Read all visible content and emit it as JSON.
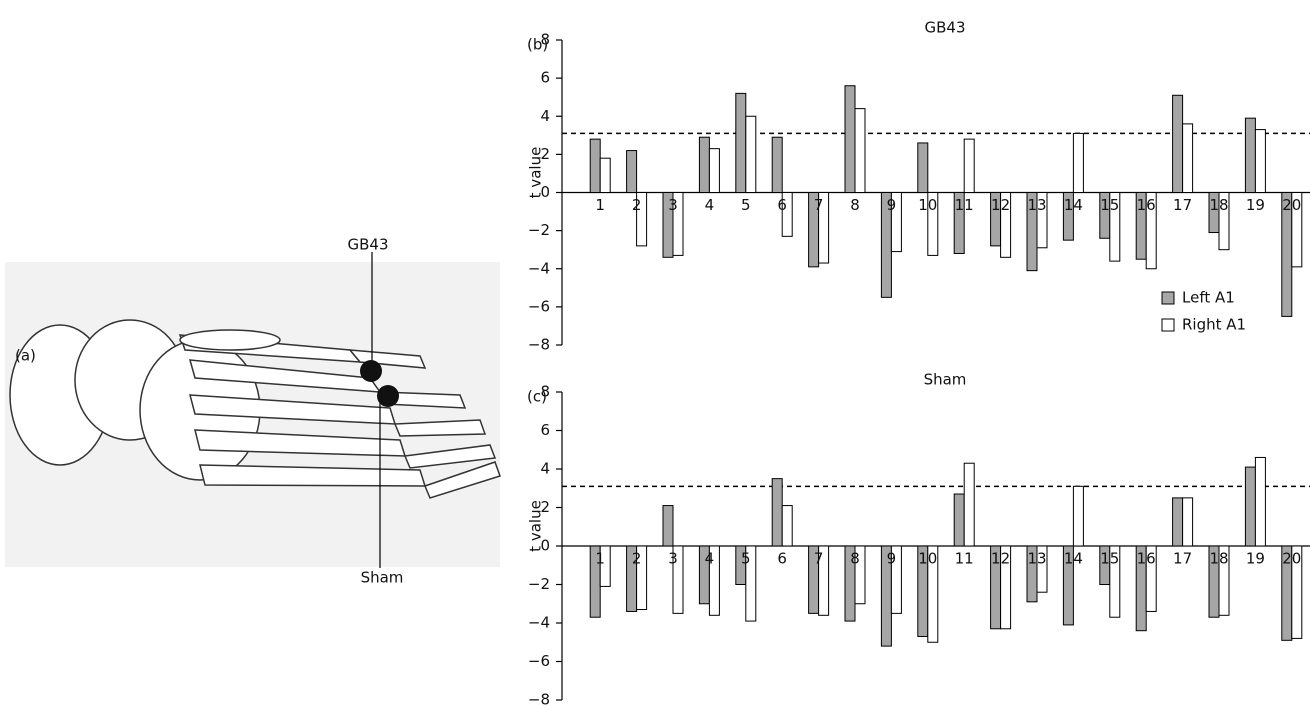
{
  "illustration": {
    "label": "(a)",
    "points": [
      "GB43",
      "Sham"
    ]
  },
  "chart_data": [
    {
      "type": "bar",
      "panel": "(b)",
      "title": "GB43",
      "y_label": "t value",
      "categories": [
        "1",
        "2",
        "3",
        "4",
        "5",
        "6",
        "7",
        "8",
        "9",
        "10",
        "11",
        "12",
        "13",
        "14",
        "15",
        "16",
        "17",
        "18",
        "19",
        "20"
      ],
      "series": [
        {
          "name": "Left A1",
          "color": "#a6a6a6",
          "values": [
            2.8,
            2.2,
            -3.4,
            2.9,
            5.2,
            2.9,
            -3.9,
            5.6,
            -5.5,
            2.6,
            -3.2,
            -2.8,
            -4.1,
            -2.5,
            -2.4,
            -3.5,
            5.1,
            -2.1,
            3.9,
            -6.5
          ]
        },
        {
          "name": "Right A1",
          "color": "#ffffff",
          "values": [
            1.8,
            -2.8,
            -3.3,
            2.3,
            4.0,
            -2.3,
            -3.7,
            4.4,
            -3.1,
            -3.3,
            2.8,
            -3.4,
            -2.9,
            3.1,
            -3.6,
            -4.0,
            3.6,
            -3.0,
            3.3,
            -3.9
          ]
        }
      ],
      "reference_line": 3.1,
      "ylim": [
        -8,
        8
      ],
      "yticks": [
        {
          "value": -8,
          "label": "−8"
        },
        {
          "value": -6,
          "label": "−6"
        },
        {
          "value": -4,
          "label": "−4"
        },
        {
          "value": -2,
          "label": "−2"
        },
        0,
        2,
        4,
        6,
        8
      ]
    },
    {
      "type": "bar",
      "panel": "(c)",
      "title": "Sham",
      "y_label": "t value",
      "categories": [
        "1",
        "2",
        "3",
        "4",
        "5",
        "6",
        "7",
        "8",
        "9",
        "10",
        "11",
        "12",
        "13",
        "14",
        "15",
        "16",
        "17",
        "18",
        "19",
        "20"
      ],
      "series": [
        {
          "color": "#a6a6a6",
          "values": [
            -3.7,
            -3.4,
            2.1,
            -3.0,
            -2.0,
            3.5,
            -3.5,
            -3.9,
            -5.2,
            -4.7,
            2.7,
            -4.3,
            -2.9,
            -4.1,
            -2.0,
            -4.4,
            2.5,
            -3.7,
            4.1,
            -4.9
          ]
        },
        {
          "color": "#ffffff",
          "values": [
            -2.1,
            -3.3,
            -3.5,
            -3.6,
            -3.9,
            2.1,
            -3.6,
            -3.0,
            -3.5,
            -5.0,
            4.3,
            -4.3,
            -2.4,
            3.1,
            -3.7,
            -3.4,
            2.5,
            -3.6,
            4.6,
            -4.8
          ]
        }
      ],
      "reference_line": 3.1,
      "ylim": [
        -8,
        8
      ],
      "yticks": [
        {
          "value": -8,
          "label": "−8"
        },
        {
          "value": -6,
          "label": "−6"
        },
        {
          "value": -4,
          "label": "−4"
        },
        {
          "value": -2,
          "label": "−2"
        },
        0,
        2,
        4,
        6,
        8
      ]
    }
  ]
}
